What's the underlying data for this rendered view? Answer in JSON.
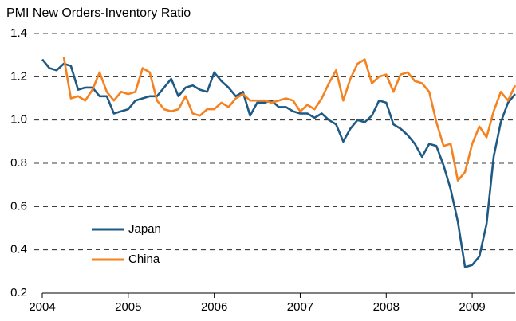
{
  "chart_data": {
    "type": "line",
    "title": "PMI New Orders-Inventory Ratio",
    "x": [
      2004,
      2004.0833,
      2004.1667,
      2004.25,
      2004.3333,
      2004.4167,
      2004.5,
      2004.5833,
      2004.6667,
      2004.75,
      2004.8333,
      2004.9167,
      2005,
      2005.0833,
      2005.1667,
      2005.25,
      2005.3333,
      2005.4167,
      2005.5,
      2005.5833,
      2005.6667,
      2005.75,
      2005.8333,
      2005.9167,
      2006,
      2006.0833,
      2006.1667,
      2006.25,
      2006.3333,
      2006.4167,
      2006.5,
      2006.5833,
      2006.6667,
      2006.75,
      2006.8333,
      2006.9167,
      2007,
      2007.0833,
      2007.1667,
      2007.25,
      2007.3333,
      2007.4167,
      2007.5,
      2007.5833,
      2007.6667,
      2007.75,
      2007.8333,
      2007.9167,
      2008,
      2008.0833,
      2008.1667,
      2008.25,
      2008.3333,
      2008.4167,
      2008.5,
      2008.5833,
      2008.6667,
      2008.75,
      2008.8333,
      2008.9167,
      2009,
      2009.0833,
      2009.1667,
      2009.25,
      2009.3333,
      2009.4167,
      2009.5
    ],
    "series": [
      {
        "name": "Japan",
        "color": "#1f5a84",
        "values": [
          1.28,
          1.24,
          1.23,
          1.26,
          1.25,
          1.14,
          1.15,
          1.15,
          1.11,
          1.11,
          1.03,
          1.04,
          1.05,
          1.09,
          1.1,
          1.11,
          1.11,
          1.15,
          1.19,
          1.11,
          1.15,
          1.16,
          1.14,
          1.13,
          1.22,
          1.18,
          1.15,
          1.11,
          1.13,
          1.02,
          1.08,
          1.08,
          1.09,
          1.06,
          1.06,
          1.04,
          1.03,
          1.03,
          1.01,
          1.03,
          1.0,
          0.98,
          0.9,
          0.96,
          1.0,
          0.99,
          1.02,
          1.09,
          1.08,
          0.98,
          0.96,
          0.93,
          0.89,
          0.83,
          0.89,
          0.88,
          0.79,
          0.68,
          0.53,
          0.32,
          0.33,
          0.37,
          0.52,
          0.83,
          0.99,
          1.08,
          1.12
        ]
      },
      {
        "name": "China",
        "color": "#f58220",
        "values": [
          null,
          null,
          null,
          1.29,
          1.1,
          1.11,
          1.09,
          1.14,
          1.22,
          1.13,
          1.09,
          1.13,
          1.12,
          1.13,
          1.24,
          1.22,
          1.09,
          1.05,
          1.04,
          1.05,
          1.11,
          1.03,
          1.02,
          1.05,
          1.05,
          1.08,
          1.06,
          1.1,
          1.12,
          1.09,
          1.09,
          1.09,
          1.08,
          1.09,
          1.1,
          1.09,
          1.04,
          1.07,
          1.05,
          1.1,
          1.17,
          1.23,
          1.09,
          1.19,
          1.26,
          1.28,
          1.17,
          1.2,
          1.21,
          1.13,
          1.21,
          1.22,
          1.18,
          1.17,
          1.13,
          0.99,
          0.88,
          0.89,
          0.72,
          0.76,
          0.89,
          0.97,
          0.92,
          1.04,
          1.13,
          1.09,
          1.16
        ]
      }
    ],
    "xlim": [
      2004,
      2009.5
    ],
    "xticks": [
      2004,
      2005,
      2006,
      2007,
      2008,
      2009
    ],
    "ylim": [
      0.2,
      1.4
    ],
    "yticks": [
      {
        "value": 0.2,
        "label": "0.2"
      },
      {
        "value": 0.4,
        "label": "0.4"
      },
      {
        "value": 0.6,
        "label": "0.6"
      },
      {
        "value": 0.8,
        "label": "0.8"
      },
      {
        "value": 1.0,
        "label": "1.0"
      },
      {
        "value": 1.2,
        "label": "1.2"
      },
      {
        "value": 1.4,
        "label": "1.4"
      }
    ],
    "grid": true,
    "legend": "lower left"
  }
}
